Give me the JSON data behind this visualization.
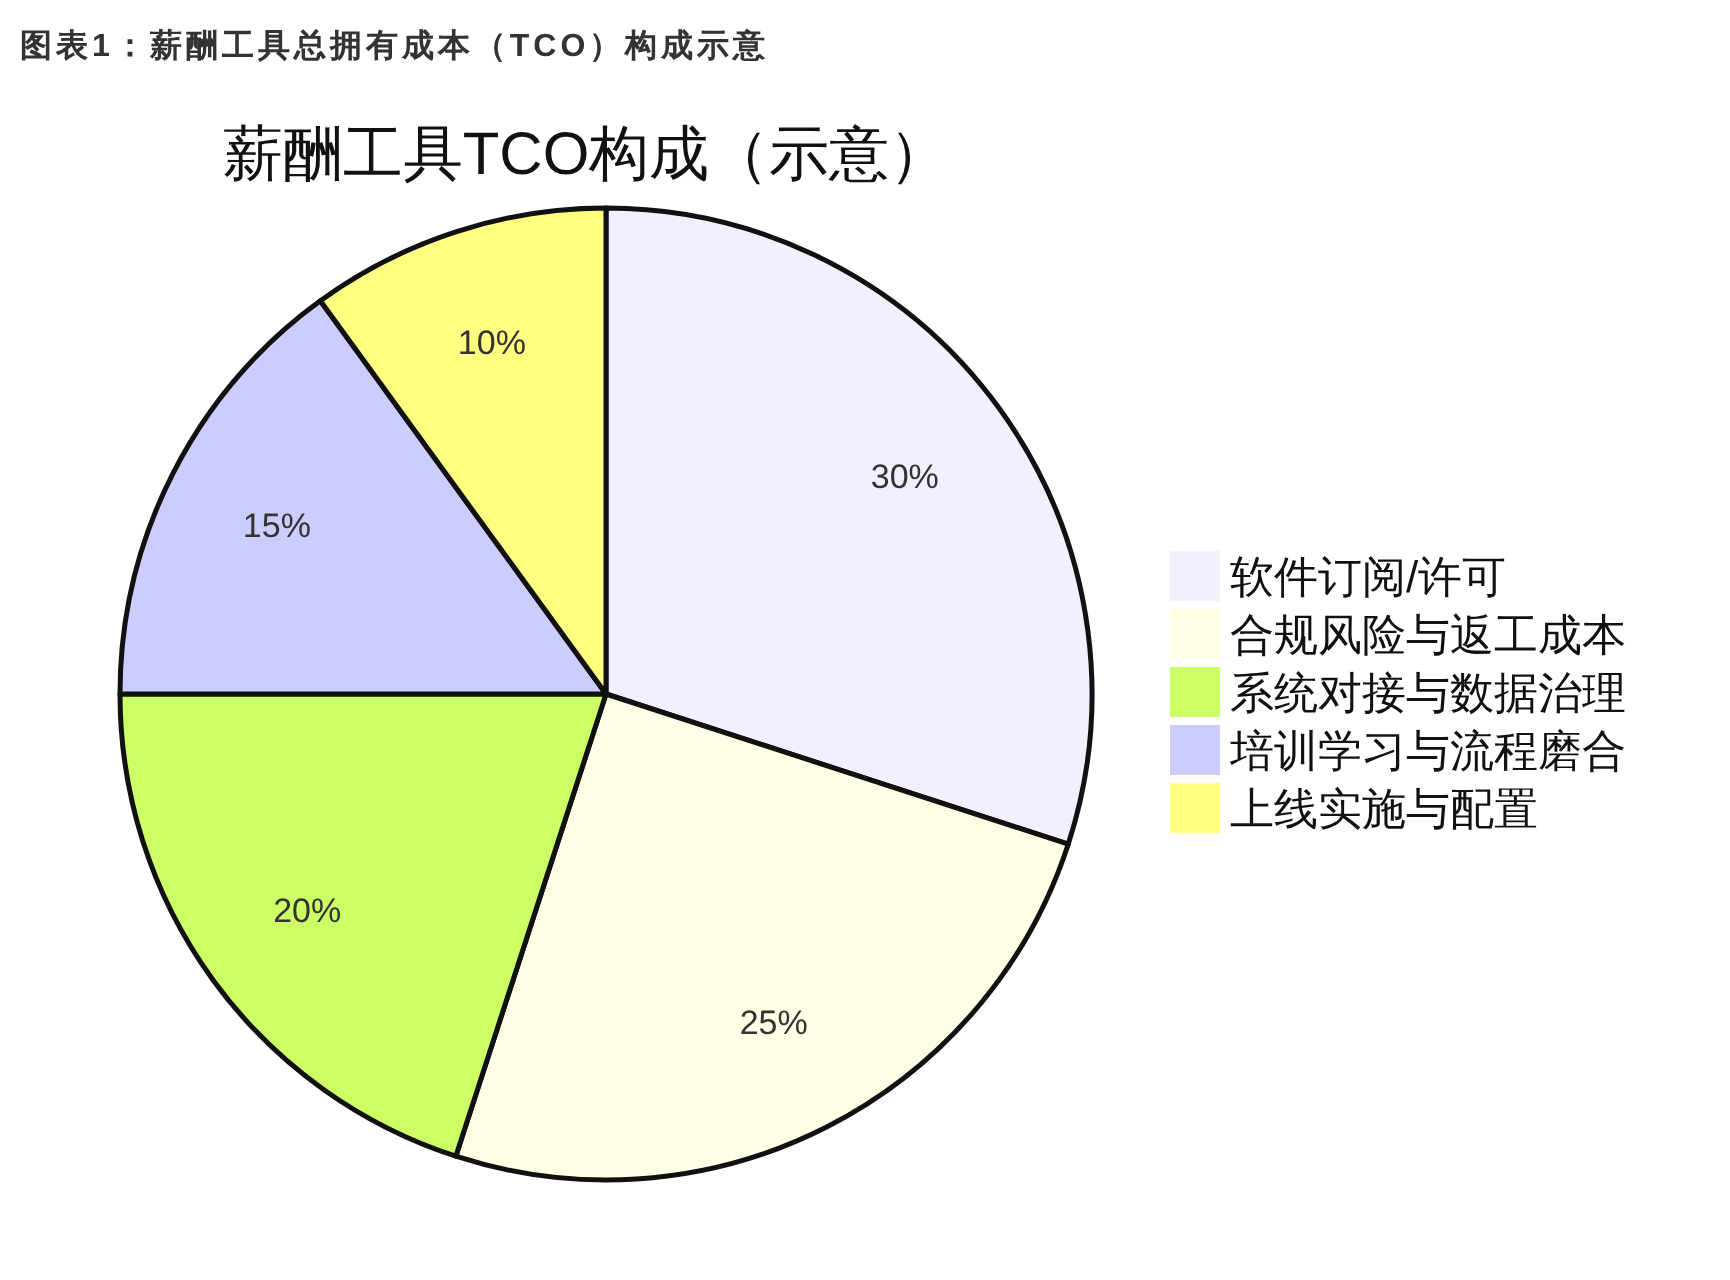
{
  "chart_data": {
    "type": "pie",
    "title": "薪酬工具TCO构成（示意）",
    "annotations": [
      "图表1：薪酬工具总拥有成本（TCO）构成示意"
    ],
    "categories": [
      "软件订阅/许可",
      "合规风险与返工成本",
      "系统对接与数据治理",
      "培训学习与流程磨合",
      "上线实施与配置"
    ],
    "values": [
      30,
      25,
      20,
      15,
      10
    ],
    "value_labels": [
      "30%",
      "25%",
      "20%",
      "15%",
      "10%"
    ],
    "colors": [
      "#f0f0ff",
      "#ffffe6",
      "#ccff66",
      "#ccccff",
      "#ffff80"
    ],
    "legend": "right"
  }
}
